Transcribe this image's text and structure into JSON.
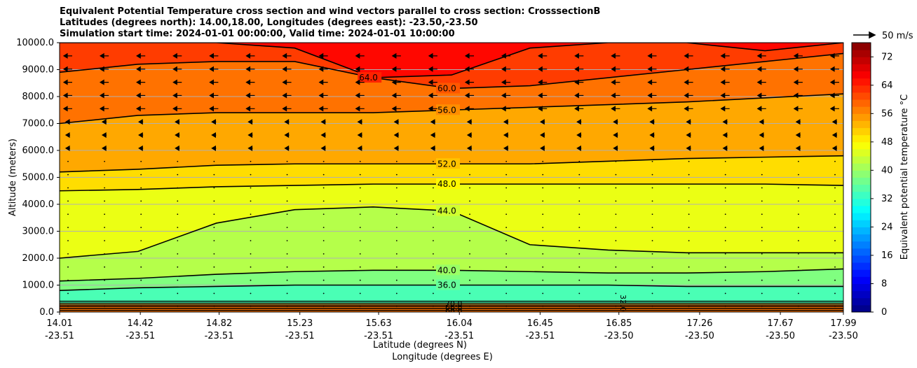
{
  "chart_data": {
    "type": "contourf",
    "title_lines": [
      "Equivalent Potential Temperature cross section and wind vectors parallel to cross section: CrosssectionB",
      "Latitudes (degrees north): 14.00,18.00, Longitudes (degrees east): -23.50,-23.50",
      "Simulation start time: 2024-01-01 00:00:00, Valid time: 2024-01-01 10:00:00"
    ],
    "ylabel": "Altitude (meters)",
    "xlabel": "Latitude (degrees N)",
    "xlabel2": "Longitude (degrees E)",
    "ylim": [
      0,
      10000
    ],
    "yticks": [
      "0.0",
      "1000.0",
      "2000.0",
      "3000.0",
      "4000.0",
      "5000.0",
      "6000.0",
      "7000.0",
      "8000.0",
      "9000.0",
      "10000.0"
    ],
    "xlim": [
      14.01,
      17.99
    ],
    "xticks": [
      {
        "lat": "14.01",
        "lon": "-23.51"
      },
      {
        "lat": "14.42",
        "lon": "-23.51"
      },
      {
        "lat": "14.82",
        "lon": "-23.51"
      },
      {
        "lat": "15.23",
        "lon": "-23.51"
      },
      {
        "lat": "15.63",
        "lon": "-23.51"
      },
      {
        "lat": "16.04",
        "lon": "-23.51"
      },
      {
        "lat": "16.45",
        "lon": "-23.51"
      },
      {
        "lat": "16.85",
        "lon": "-23.50"
      },
      {
        "lat": "17.26",
        "lon": "-23.50"
      },
      {
        "lat": "17.67",
        "lon": "-23.50"
      },
      {
        "lat": "17.99",
        "lon": "-23.50"
      }
    ],
    "grid": "horizontal",
    "colorbar": {
      "label": "Equivalent potential temperature $^\\circ$C",
      "ticks": [
        "0",
        "8",
        "16",
        "24",
        "32",
        "40",
        "48",
        "56",
        "64",
        "72"
      ],
      "range": [
        0,
        76
      ]
    },
    "quiver_key": "50 m/s",
    "contour_levels": [
      {
        "value": 36,
        "label": "36.0",
        "altitudes": [
          800,
          900,
          950,
          1000,
          1000,
          1000,
          1000,
          1000,
          950,
          950,
          950
        ]
      },
      {
        "value": 40,
        "label": "40.0",
        "altitudes": [
          1150,
          1250,
          1400,
          1500,
          1550,
          1550,
          1500,
          1450,
          1450,
          1500,
          1600
        ]
      },
      {
        "value": 44,
        "label": "44.0",
        "altitudes": [
          2000,
          2250,
          3300,
          3800,
          3900,
          3750,
          2500,
          2300,
          2200,
          2200,
          2200
        ]
      },
      {
        "value": 48,
        "label": "48.0",
        "altitudes": [
          4500,
          4550,
          4650,
          4700,
          4750,
          4750,
          4750,
          4750,
          4750,
          4750,
          4700
        ]
      },
      {
        "value": 52,
        "label": "52.0",
        "altitudes": [
          5200,
          5300,
          5450,
          5500,
          5500,
          5500,
          5500,
          5600,
          5700,
          5750,
          5800
        ]
      },
      {
        "value": 56,
        "label": "56.0",
        "altitudes": [
          7000,
          7300,
          7400,
          7400,
          7400,
          7500,
          7600,
          7700,
          7800,
          7950,
          8100
        ]
      },
      {
        "value": 60,
        "label": "60.0",
        "altitudes": [
          8900,
          9200,
          9300,
          9300,
          8700,
          8300,
          8400,
          8700,
          9000,
          9300,
          9600
        ]
      },
      {
        "value": 64,
        "label": "64.0",
        "altitudes": [
          10000,
          10000,
          10000,
          9800,
          8700,
          8800,
          9800,
          10000,
          10000,
          9700,
          10000
        ]
      }
    ],
    "surface_labels": [
      "70.0",
      "66.0",
      "68.0",
      "32.0"
    ],
    "wind_direction": "southward aloft (toward 14.01), weak near surface"
  }
}
